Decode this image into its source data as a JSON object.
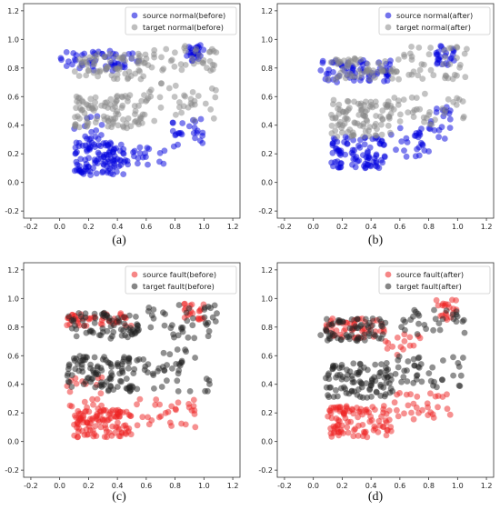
{
  "chart_data": [
    {
      "type": "scatter",
      "panel_label": "(a)",
      "xlim": [
        -0.25,
        1.25
      ],
      "ylim": [
        -0.25,
        1.25
      ],
      "x_ticks": [
        "-0.2",
        "0.0",
        "0.2",
        "0.4",
        "0.6",
        "0.8",
        "1.0",
        "1.2"
      ],
      "y_ticks": [
        "-0.2",
        "0.0",
        "0.2",
        "0.4",
        "0.6",
        "0.8",
        "1.0",
        "1.2"
      ],
      "legend_position": "top-right",
      "series": [
        {
          "name": "source normal(before)",
          "color": "#0000dd",
          "clusters": [
            {
              "x": [
                0.0,
                0.55
              ],
              "y": [
                0.78,
                0.92
              ],
              "n": 55
            },
            {
              "x": [
                0.88,
                1.0
              ],
              "y": [
                0.85,
                0.96
              ],
              "n": 25
            },
            {
              "x": [
                0.1,
                0.45
              ],
              "y": [
                0.05,
                0.28
              ],
              "n": 110
            },
            {
              "x": [
                0.45,
                0.75
              ],
              "y": [
                0.12,
                0.25
              ],
              "n": 20
            },
            {
              "x": [
                0.75,
                1.0
              ],
              "y": [
                0.25,
                0.45
              ],
              "n": 25
            },
            {
              "x": [
                0.1,
                0.3
              ],
              "y": [
                0.3,
                0.5
              ],
              "n": 15
            }
          ]
        },
        {
          "name": "target normal(before)",
          "color": "#888888",
          "clusters": [
            {
              "x": [
                0.1,
                0.6
              ],
              "y": [
                0.72,
                0.9
              ],
              "n": 70
            },
            {
              "x": [
                0.6,
                1.1
              ],
              "y": [
                0.78,
                0.96
              ],
              "n": 40
            },
            {
              "x": [
                0.1,
                0.6
              ],
              "y": [
                0.38,
                0.62
              ],
              "n": 100
            },
            {
              "x": [
                0.6,
                1.1
              ],
              "y": [
                0.42,
                0.7
              ],
              "n": 35
            }
          ]
        }
      ]
    },
    {
      "type": "scatter",
      "panel_label": "(b)",
      "xlim": [
        -0.25,
        1.25
      ],
      "ylim": [
        -0.25,
        1.25
      ],
      "x_ticks": [
        "-0.2",
        "0.0",
        "0.2",
        "0.4",
        "0.6",
        "0.8",
        "1.0",
        "1.2"
      ],
      "y_ticks": [
        "-0.2",
        "0.0",
        "0.2",
        "0.4",
        "0.6",
        "0.8",
        "1.0",
        "1.2"
      ],
      "legend_position": "top-right",
      "series": [
        {
          "name": "source normal(after)",
          "color": "#0000dd",
          "clusters": [
            {
              "x": [
                0.05,
                0.55
              ],
              "y": [
                0.7,
                0.86
              ],
              "n": 70
            },
            {
              "x": [
                0.85,
                0.98
              ],
              "y": [
                0.82,
                0.96
              ],
              "n": 25
            },
            {
              "x": [
                0.12,
                0.5
              ],
              "y": [
                0.1,
                0.32
              ],
              "n": 90
            },
            {
              "x": [
                0.5,
                0.8
              ],
              "y": [
                0.18,
                0.4
              ],
              "n": 25
            },
            {
              "x": [
                0.8,
                0.95
              ],
              "y": [
                0.3,
                0.55
              ],
              "n": 20
            }
          ]
        },
        {
          "name": "target normal(after)",
          "color": "#888888",
          "clusters": [
            {
              "x": [
                0.1,
                0.6
              ],
              "y": [
                0.72,
                0.88
              ],
              "n": 60
            },
            {
              "x": [
                0.6,
                1.08
              ],
              "y": [
                0.72,
                0.95
              ],
              "n": 40
            },
            {
              "x": [
                0.12,
                0.55
              ],
              "y": [
                0.32,
                0.58
              ],
              "n": 100
            },
            {
              "x": [
                0.55,
                1.05
              ],
              "y": [
                0.4,
                0.62
              ],
              "n": 35
            }
          ]
        }
      ]
    },
    {
      "type": "scatter",
      "panel_label": "(c)",
      "xlim": [
        -0.25,
        1.25
      ],
      "ylim": [
        -0.25,
        1.25
      ],
      "x_ticks": [
        "-0.2",
        "0.0",
        "0.2",
        "0.4",
        "0.6",
        "0.8",
        "1.0",
        "1.2"
      ],
      "y_ticks": [
        "-0.2",
        "0.0",
        "0.2",
        "0.4",
        "0.6",
        "0.8",
        "1.0",
        "1.2"
      ],
      "legend_position": "top-right",
      "series": [
        {
          "name": "source fault(before)",
          "color": "#ee2222",
          "clusters": [
            {
              "x": [
                0.05,
                0.5
              ],
              "y": [
                0.8,
                0.9
              ],
              "n": 45
            },
            {
              "x": [
                0.85,
                1.0
              ],
              "y": [
                0.85,
                0.98
              ],
              "n": 20
            },
            {
              "x": [
                0.1,
                0.5
              ],
              "y": [
                0.03,
                0.22
              ],
              "n": 110
            },
            {
              "x": [
                0.5,
                0.95
              ],
              "y": [
                0.1,
                0.3
              ],
              "n": 30
            },
            {
              "x": [
                0.05,
                0.3
              ],
              "y": [
                0.22,
                0.45
              ],
              "n": 20
            }
          ]
        },
        {
          "name": "target fault(before)",
          "color": "#222222",
          "clusters": [
            {
              "x": [
                0.05,
                0.55
              ],
              "y": [
                0.72,
                0.9
              ],
              "n": 70
            },
            {
              "x": [
                0.6,
                1.1
              ],
              "y": [
                0.7,
                0.96
              ],
              "n": 40
            },
            {
              "x": [
                0.05,
                0.5
              ],
              "y": [
                0.35,
                0.6
              ],
              "n": 100
            },
            {
              "x": [
                0.5,
                1.05
              ],
              "y": [
                0.35,
                0.65
              ],
              "n": 45
            }
          ]
        }
      ]
    },
    {
      "type": "scatter",
      "panel_label": "(d)",
      "xlim": [
        -0.25,
        1.25
      ],
      "ylim": [
        -0.25,
        1.25
      ],
      "x_ticks": [
        "-0.2",
        "0.0",
        "0.2",
        "0.4",
        "0.6",
        "0.8",
        "1.0",
        "1.2"
      ],
      "y_ticks": [
        "-0.2",
        "0.0",
        "0.2",
        "0.4",
        "0.6",
        "0.8",
        "1.0",
        "1.2"
      ],
      "legend_position": "top-right",
      "series": [
        {
          "name": "source fault(after)",
          "color": "#ee2222",
          "clusters": [
            {
              "x": [
                0.05,
                0.5
              ],
              "y": [
                0.72,
                0.86
              ],
              "n": 50
            },
            {
              "x": [
                0.85,
                1.0
              ],
              "y": [
                0.85,
                1.0
              ],
              "n": 20
            },
            {
              "x": [
                0.1,
                0.55
              ],
              "y": [
                0.03,
                0.25
              ],
              "n": 100
            },
            {
              "x": [
                0.55,
                0.95
              ],
              "y": [
                0.15,
                0.35
              ],
              "n": 30
            },
            {
              "x": [
                0.5,
                0.75
              ],
              "y": [
                0.6,
                0.75
              ],
              "n": 15
            }
          ]
        },
        {
          "name": "target fault(after)",
          "color": "#222222",
          "clusters": [
            {
              "x": [
                0.05,
                0.5
              ],
              "y": [
                0.7,
                0.86
              ],
              "n": 65
            },
            {
              "x": [
                0.6,
                1.05
              ],
              "y": [
                0.75,
                0.92
              ],
              "n": 30
            },
            {
              "x": [
                0.08,
                0.55
              ],
              "y": [
                0.3,
                0.55
              ],
              "n": 100
            },
            {
              "x": [
                0.55,
                1.05
              ],
              "y": [
                0.38,
                0.6
              ],
              "n": 40
            }
          ]
        }
      ]
    }
  ]
}
